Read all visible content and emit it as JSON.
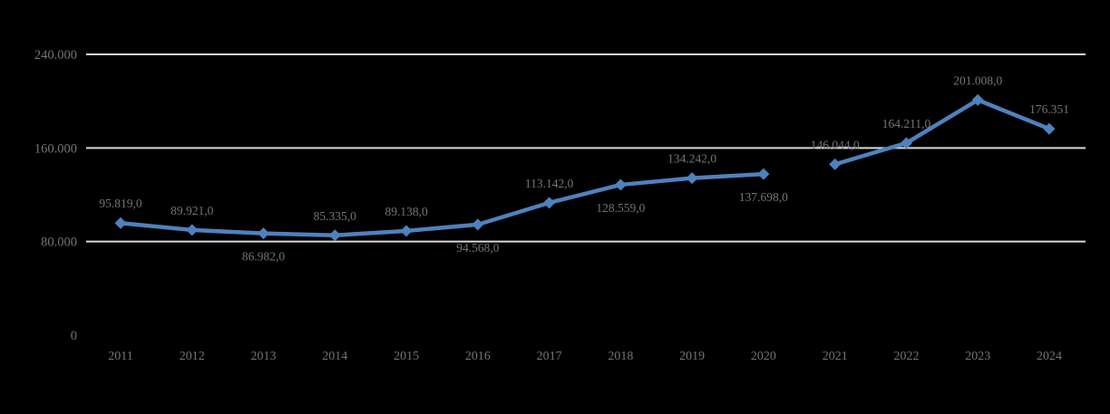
{
  "chart_data": {
    "type": "line",
    "title": "",
    "xlabel": "",
    "ylabel": "",
    "x": [
      "2011",
      "2012",
      "2013",
      "2014",
      "2015",
      "2016",
      "2017",
      "2018",
      "2019",
      "2020",
      "2021",
      "2022",
      "2023",
      "2024"
    ],
    "series": [
      {
        "name": "values",
        "color": "#4f81bd",
        "values": [
          95819,
          89921,
          86982,
          85335,
          89138,
          94568,
          113142,
          128559,
          134242,
          137698,
          146044,
          164211,
          201008,
          176351
        ],
        "segments": [
          [
            0,
            9
          ],
          [
            10,
            13
          ]
        ]
      }
    ],
    "data_labels": [
      {
        "text": "95.819,0",
        "placement": "above"
      },
      {
        "text": "89.921,0",
        "placement": "above"
      },
      {
        "text": "86.982,0",
        "placement": "below"
      },
      {
        "text": "85.335,0",
        "placement": "above"
      },
      {
        "text": "89.138,0",
        "placement": "above"
      },
      {
        "text": "94.568,0",
        "placement": "below"
      },
      {
        "text": "113.142,0",
        "placement": "above"
      },
      {
        "text": "128.559,0",
        "placement": "below"
      },
      {
        "text": "134.242,0",
        "placement": "above"
      },
      {
        "text": "137.698,0",
        "placement": "below"
      },
      {
        "text": "146.044,0",
        "placement": "above"
      },
      {
        "text": "164.211,0",
        "placement": "above"
      },
      {
        "text": "201.008,0",
        "placement": "above"
      },
      {
        "text": "176.351",
        "placement": "above"
      }
    ],
    "ylim": [
      0,
      240000
    ],
    "yticks": [
      {
        "value": 240000,
        "label": "240.000",
        "gridline": true
      },
      {
        "value": 160000,
        "label": "160.000",
        "gridline": true
      },
      {
        "value": 80000,
        "label": "80.000",
        "gridline": true
      },
      {
        "value": 0,
        "label": "0",
        "gridline": false
      }
    ],
    "line_gap_between": [
      "2020",
      "2021"
    ],
    "marker": "diamond",
    "grid": "horizontal",
    "legend": null,
    "colors": {
      "background": "#000000",
      "gridline": "#d9d9d9",
      "text": "#747474",
      "line": "#4f81bd"
    }
  }
}
